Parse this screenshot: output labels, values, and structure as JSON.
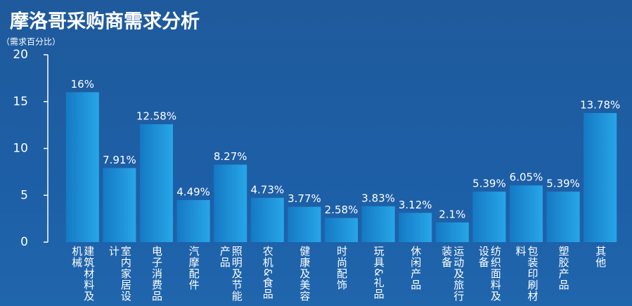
{
  "chart_data": {
    "type": "bar",
    "title": "摩洛哥采购商需求分析",
    "y_label": "（需求百分比）",
    "categories": [
      "建筑材料及机械",
      "室内家居设计",
      "电子消费品",
      "汽摩配件",
      "照明及节能产品",
      "农机&食品",
      "健康及美容",
      "时尚配饰",
      "玩具&礼品",
      "休闲产品",
      "运动及旅行装备",
      "纺织面料及设备",
      "包装印刷材料",
      "塑胶产品",
      "其他"
    ],
    "values": [
      16,
      7.91,
      12.58,
      4.49,
      8.27,
      4.73,
      3.77,
      2.58,
      3.83,
      3.12,
      2.1,
      5.39,
      6.05,
      5.39,
      13.78
    ],
    "value_labels": [
      "16%",
      "7.91%",
      "12.58%",
      "4.49%",
      "8.27%",
      "4.73%",
      "3.77%",
      "2.58%",
      "3.83%",
      "3.12%",
      "2.1%",
      "5.39%",
      "6.05%",
      "5.39%",
      "13.78%"
    ],
    "color": "#1c8fd9",
    "ylim": [
      0,
      20
    ],
    "yticks": [
      0,
      5,
      10,
      15,
      20
    ]
  }
}
